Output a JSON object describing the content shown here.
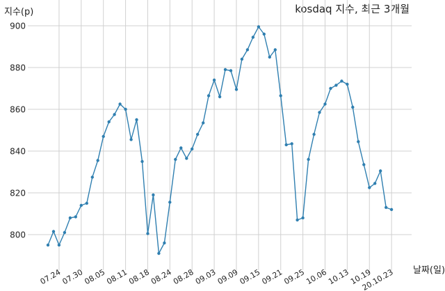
{
  "chart_data": {
    "type": "line",
    "title": "kosdaq 지수, 최근 3개월",
    "xlabel": "날짜(일)",
    "ylabel": "지수(p)",
    "ylim": [
      788,
      903
    ],
    "grid": true,
    "line_color": "#2f7fb0",
    "y_ticks": [
      800,
      820,
      840,
      860,
      880,
      900
    ],
    "x_ticks": [
      {
        "label": "07.24",
        "index": 2
      },
      {
        "label": "07.30",
        "index": 6
      },
      {
        "label": "08.05",
        "index": 10
      },
      {
        "label": "08.11",
        "index": 14
      },
      {
        "label": "08.18",
        "index": 18
      },
      {
        "label": "08.24",
        "index": 22
      },
      {
        "label": "08.28",
        "index": 26
      },
      {
        "label": "09.03",
        "index": 30
      },
      {
        "label": "09.09",
        "index": 34
      },
      {
        "label": "09.15",
        "index": 38
      },
      {
        "label": "09.21",
        "index": 42
      },
      {
        "label": "09.25",
        "index": 46
      },
      {
        "label": "10.06",
        "index": 50
      },
      {
        "label": "10.13",
        "index": 54
      },
      {
        "label": "10.19",
        "index": 58
      },
      {
        "label": "20.10.23",
        "index": 62
      }
    ],
    "values": [
      795,
      801.5,
      795,
      801,
      808,
      808.5,
      814,
      815,
      827.5,
      835.5,
      847,
      854,
      857.5,
      862.5,
      860,
      845.5,
      855,
      835,
      800.5,
      819,
      791,
      796,
      815.5,
      836,
      841.5,
      836.5,
      841,
      848,
      853.5,
      866.5,
      874,
      866,
      879,
      878.5,
      869.5,
      884,
      888.5,
      894.5,
      899.5,
      896,
      885,
      888.5,
      866.5,
      843,
      843.5,
      807,
      808,
      836,
      848,
      858.5,
      862.5,
      870,
      871.5,
      873.5,
      872,
      861,
      844.5,
      833.5,
      822.5,
      824.5,
      830.5,
      813,
      812
    ]
  }
}
